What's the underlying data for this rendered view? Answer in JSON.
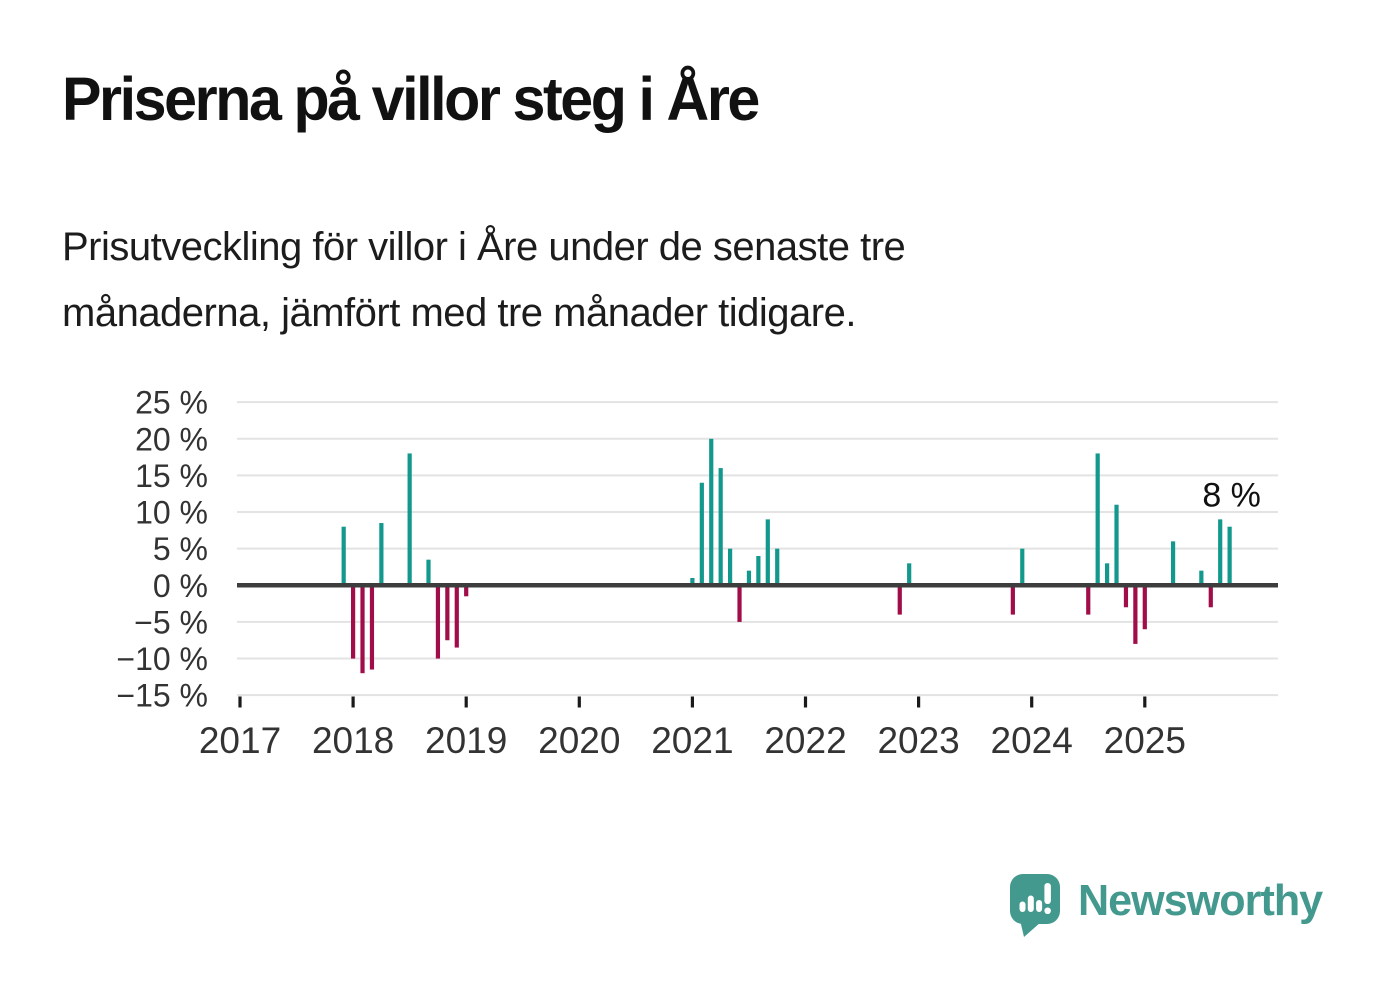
{
  "header": {
    "title": "Priserna på villor steg i Åre",
    "subtitle": "Prisutveckling för villor i Åre under de senaste tre\nmånaderna, jämfört med tre månader tidigare."
  },
  "chart_data": {
    "type": "bar",
    "title": "Priserna på villor steg i Åre",
    "unit": "%",
    "ylim": [
      -15,
      25
    ],
    "grid": true,
    "y_ticks": [
      {
        "value": 25,
        "label": "25 %"
      },
      {
        "value": 20,
        "label": "20 %"
      },
      {
        "value": 15,
        "label": "15 %"
      },
      {
        "value": 10,
        "label": "10 %"
      },
      {
        "value": 5,
        "label": "5 %"
      },
      {
        "value": 0,
        "label": "0 %"
      },
      {
        "value": -5,
        "label": "−5 %"
      },
      {
        "value": -10,
        "label": "−10 %"
      },
      {
        "value": -15,
        "label": "−15 %"
      }
    ],
    "x_ticks": [
      "2017",
      "2018",
      "2019",
      "2020",
      "2021",
      "2022",
      "2023",
      "2024",
      "2025"
    ],
    "x_range_months": [
      "2017-01",
      "2026-03"
    ],
    "series": [
      {
        "date": "2017-12",
        "value": 8
      },
      {
        "date": "2018-01",
        "value": -10
      },
      {
        "date": "2018-02",
        "value": -12
      },
      {
        "date": "2018-03",
        "value": -11.5
      },
      {
        "date": "2018-04",
        "value": 8.5
      },
      {
        "date": "2018-07",
        "value": 18
      },
      {
        "date": "2018-09",
        "value": 3.5
      },
      {
        "date": "2018-10",
        "value": -10
      },
      {
        "date": "2018-11",
        "value": -7.5
      },
      {
        "date": "2018-12",
        "value": -8.5
      },
      {
        "date": "2019-01",
        "value": -1.5
      },
      {
        "date": "2021-01",
        "value": 1
      },
      {
        "date": "2021-02",
        "value": 14
      },
      {
        "date": "2021-03",
        "value": 20
      },
      {
        "date": "2021-04",
        "value": 16
      },
      {
        "date": "2021-05",
        "value": 5
      },
      {
        "date": "2021-06",
        "value": -5
      },
      {
        "date": "2021-07",
        "value": 2
      },
      {
        "date": "2021-08",
        "value": 4
      },
      {
        "date": "2021-09",
        "value": 9
      },
      {
        "date": "2021-10",
        "value": 5
      },
      {
        "date": "2022-11",
        "value": -4
      },
      {
        "date": "2022-12",
        "value": 3
      },
      {
        "date": "2023-11",
        "value": -4
      },
      {
        "date": "2023-12",
        "value": 5
      },
      {
        "date": "2024-07",
        "value": -4
      },
      {
        "date": "2024-08",
        "value": 18
      },
      {
        "date": "2024-09",
        "value": 3
      },
      {
        "date": "2024-10",
        "value": 11
      },
      {
        "date": "2024-11",
        "value": -3
      },
      {
        "date": "2024-12",
        "value": -8
      },
      {
        "date": "2025-01",
        "value": -6
      },
      {
        "date": "2025-04",
        "value": 6
      },
      {
        "date": "2025-07",
        "value": 2
      },
      {
        "date": "2025-08",
        "value": -3
      },
      {
        "date": "2025-09",
        "value": 9
      },
      {
        "date": "2025-10",
        "value": 8
      }
    ],
    "annotation": {
      "text": "8 %",
      "date": "2025-10"
    },
    "colors": {
      "positive": "#12988c",
      "negative": "#a00d49",
      "zero_line": "#3d3d3d",
      "gridline": "#e3e3e3",
      "axis_text": "#333333",
      "annotation_text": "#111111"
    }
  },
  "branding": {
    "logo_text": "Newsworthy",
    "logo_color": "#44998f",
    "logo_icon": "speech-bubble-bar-chart-icon"
  }
}
